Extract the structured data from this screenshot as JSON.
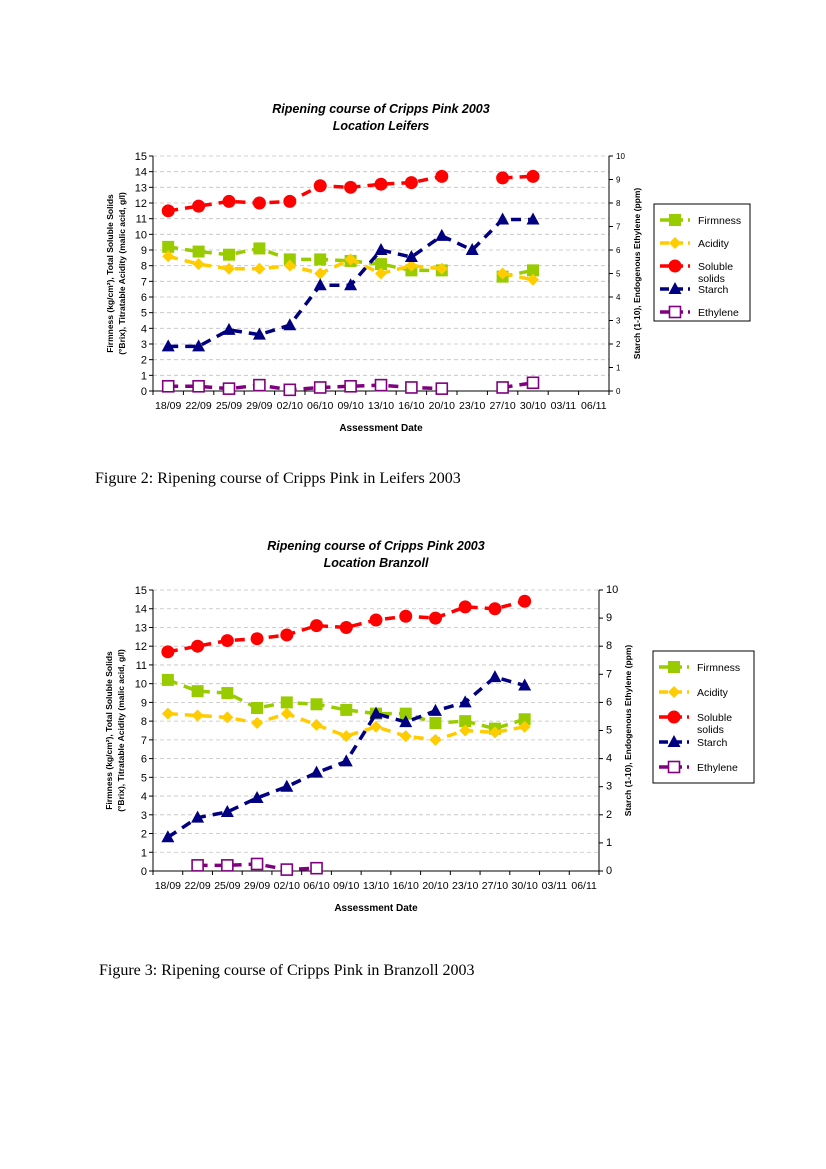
{
  "captions": {
    "fig2": "Figure 2: Ripening course of Cripps Pink in Leifers 2003",
    "fig3": "Figure 3: Ripening course of Cripps Pink in Branzoll 2003"
  },
  "chart_data": [
    {
      "type": "line",
      "title": "Ripening course of Cripps Pink 2003",
      "subtitle": "Location Leifers",
      "xlabel": "Assessment Date",
      "ylabel": [
        "Firmness (kg/cm²), Total Soluble Solids",
        "(°Brix), Titratable Acidity (malic acid, g/l)"
      ],
      "y2label": "Starch (1-10), Endogenous Ethylene (ppm)",
      "categories": [
        "18/09",
        "22/09",
        "25/09",
        "29/09",
        "02/10",
        "06/10",
        "09/10",
        "13/10",
        "16/10",
        "20/10",
        "23/10",
        "27/10",
        "30/10",
        "03/11",
        "06/11"
      ],
      "ylim": [
        0,
        15
      ],
      "yticks": [
        "0",
        "1",
        "2",
        "3",
        "4",
        "5",
        "6",
        "7",
        "8",
        "9",
        "10",
        "11",
        "12",
        "13",
        "14",
        "15"
      ],
      "y2lim": [
        0,
        10
      ],
      "y2ticks": [
        "0",
        "1",
        "2",
        "3",
        "4",
        "5",
        "6",
        "7",
        "8",
        "9",
        "10"
      ],
      "grid": true,
      "legend_position": "right",
      "series": [
        {
          "name": "Firmness",
          "axis": "left",
          "color": "#99cc00",
          "marker": "square",
          "values": [
            9.2,
            8.9,
            8.7,
            9.1,
            8.4,
            8.4,
            8.3,
            8.1,
            7.7,
            7.7,
            null,
            7.3,
            7.7,
            null,
            null
          ]
        },
        {
          "name": "Acidity",
          "axis": "left",
          "color": "#ffcc00",
          "marker": "diamond",
          "values": [
            8.6,
            8.1,
            7.8,
            7.8,
            8.0,
            7.5,
            8.4,
            7.5,
            8.0,
            7.8,
            null,
            7.5,
            7.1,
            null,
            null
          ]
        },
        {
          "name": "Soluble solids",
          "axis": "left",
          "color": "#ff0000",
          "marker": "circle",
          "values": [
            11.5,
            11.8,
            12.1,
            12.0,
            12.1,
            13.1,
            13.0,
            13.2,
            13.3,
            13.7,
            null,
            13.6,
            13.7,
            null,
            null
          ]
        },
        {
          "name": "Starch",
          "axis": "right",
          "color": "#000080",
          "marker": "triangle",
          "values": [
            1.9,
            1.9,
            2.6,
            2.4,
            2.8,
            4.5,
            4.5,
            6.0,
            5.7,
            6.6,
            6.0,
            7.3,
            7.3,
            null,
            null
          ]
        },
        {
          "name": "Ethylene",
          "axis": "right",
          "color": "#800080",
          "marker": "open-square",
          "values": [
            0.2,
            0.2,
            0.1,
            0.25,
            0.05,
            0.15,
            0.2,
            0.25,
            0.15,
            0.1,
            null,
            0.15,
            0.35,
            null,
            null
          ]
        }
      ]
    },
    {
      "type": "line",
      "title": "Ripening course of Cripps Pink 2003",
      "subtitle": "Location Branzoll",
      "xlabel": "Assessment Date",
      "ylabel": [
        "Firmness (kg/cm²), Total Soluble Solids",
        "(°Brix), Titratable Acidity (malic acid, g/l)"
      ],
      "y2label": "Starch (1-10), Endogenous Ethylene (ppm)",
      "categories": [
        "18/09",
        "22/09",
        "25/09",
        "29/09",
        "02/10",
        "06/10",
        "09/10",
        "13/10",
        "16/10",
        "20/10",
        "23/10",
        "27/10",
        "30/10",
        "03/11",
        "06/11"
      ],
      "ylim": [
        0,
        15
      ],
      "yticks": [
        "0",
        "1",
        "2",
        "3",
        "4",
        "5",
        "6",
        "7",
        "8",
        "9",
        "10",
        "11",
        "12",
        "13",
        "14",
        "15"
      ],
      "y2lim": [
        0,
        10
      ],
      "y2ticks": [
        "0",
        "1",
        "2",
        "3",
        "4",
        "5",
        "6",
        "7",
        "8",
        "9",
        "10"
      ],
      "grid": true,
      "legend_position": "right",
      "series": [
        {
          "name": "Firmness",
          "axis": "left",
          "color": "#99cc00",
          "marker": "square",
          "values": [
            10.2,
            9.6,
            9.5,
            8.7,
            9.0,
            8.9,
            8.6,
            8.4,
            8.4,
            7.9,
            8.0,
            7.6,
            8.1,
            null,
            null
          ]
        },
        {
          "name": "Acidity",
          "axis": "left",
          "color": "#ffcc00",
          "marker": "diamond",
          "values": [
            8.4,
            8.3,
            8.2,
            7.9,
            8.4,
            7.8,
            7.2,
            7.7,
            7.2,
            7.0,
            7.5,
            7.4,
            7.7,
            null,
            null
          ]
        },
        {
          "name": "Soluble solids",
          "axis": "left",
          "color": "#ff0000",
          "marker": "circle",
          "values": [
            11.7,
            12.0,
            12.3,
            12.4,
            12.6,
            13.1,
            13.0,
            13.4,
            13.6,
            13.5,
            14.1,
            14.0,
            14.4,
            null,
            null
          ]
        },
        {
          "name": "Starch",
          "axis": "right",
          "color": "#000080",
          "marker": "triangle",
          "values": [
            1.2,
            1.9,
            2.1,
            2.6,
            3.0,
            3.5,
            3.9,
            5.6,
            5.3,
            5.7,
            6.0,
            6.9,
            6.6,
            null,
            null
          ]
        },
        {
          "name": "Ethylene",
          "axis": "right",
          "color": "#800080",
          "marker": "open-square",
          "values": [
            null,
            0.2,
            0.2,
            0.25,
            0.05,
            0.1,
            null,
            null,
            null,
            null,
            null,
            null,
            null,
            null,
            null
          ]
        }
      ]
    }
  ]
}
